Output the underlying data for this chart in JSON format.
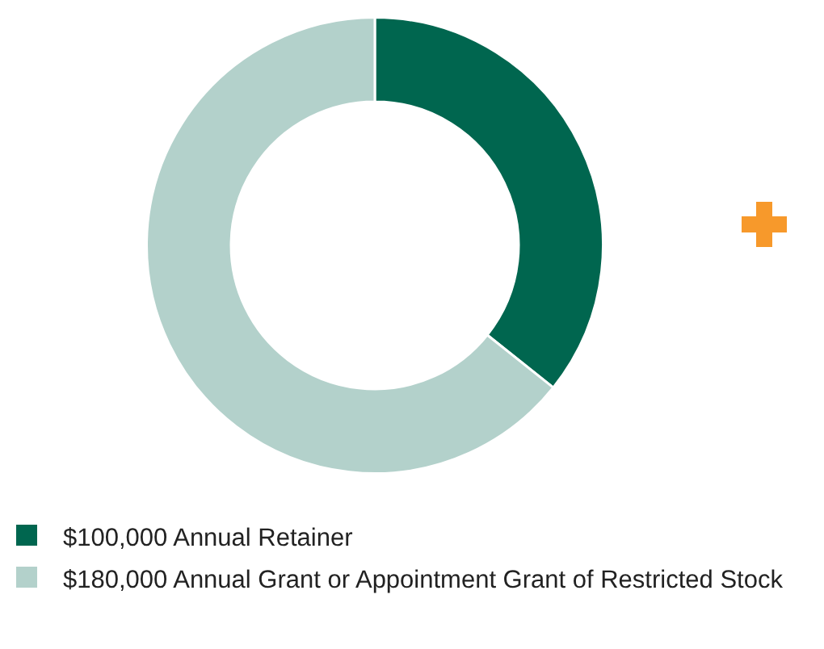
{
  "chart_data": {
    "type": "donut",
    "categories": [
      "$100,000 Annual Retainer",
      "$180,000 Annual Grant or Appointment Grant of Restricted Stock"
    ],
    "values": [
      100000,
      180000
    ],
    "colors": [
      "#00664f",
      "#b3d1cb"
    ],
    "legend": "bottom"
  }
}
